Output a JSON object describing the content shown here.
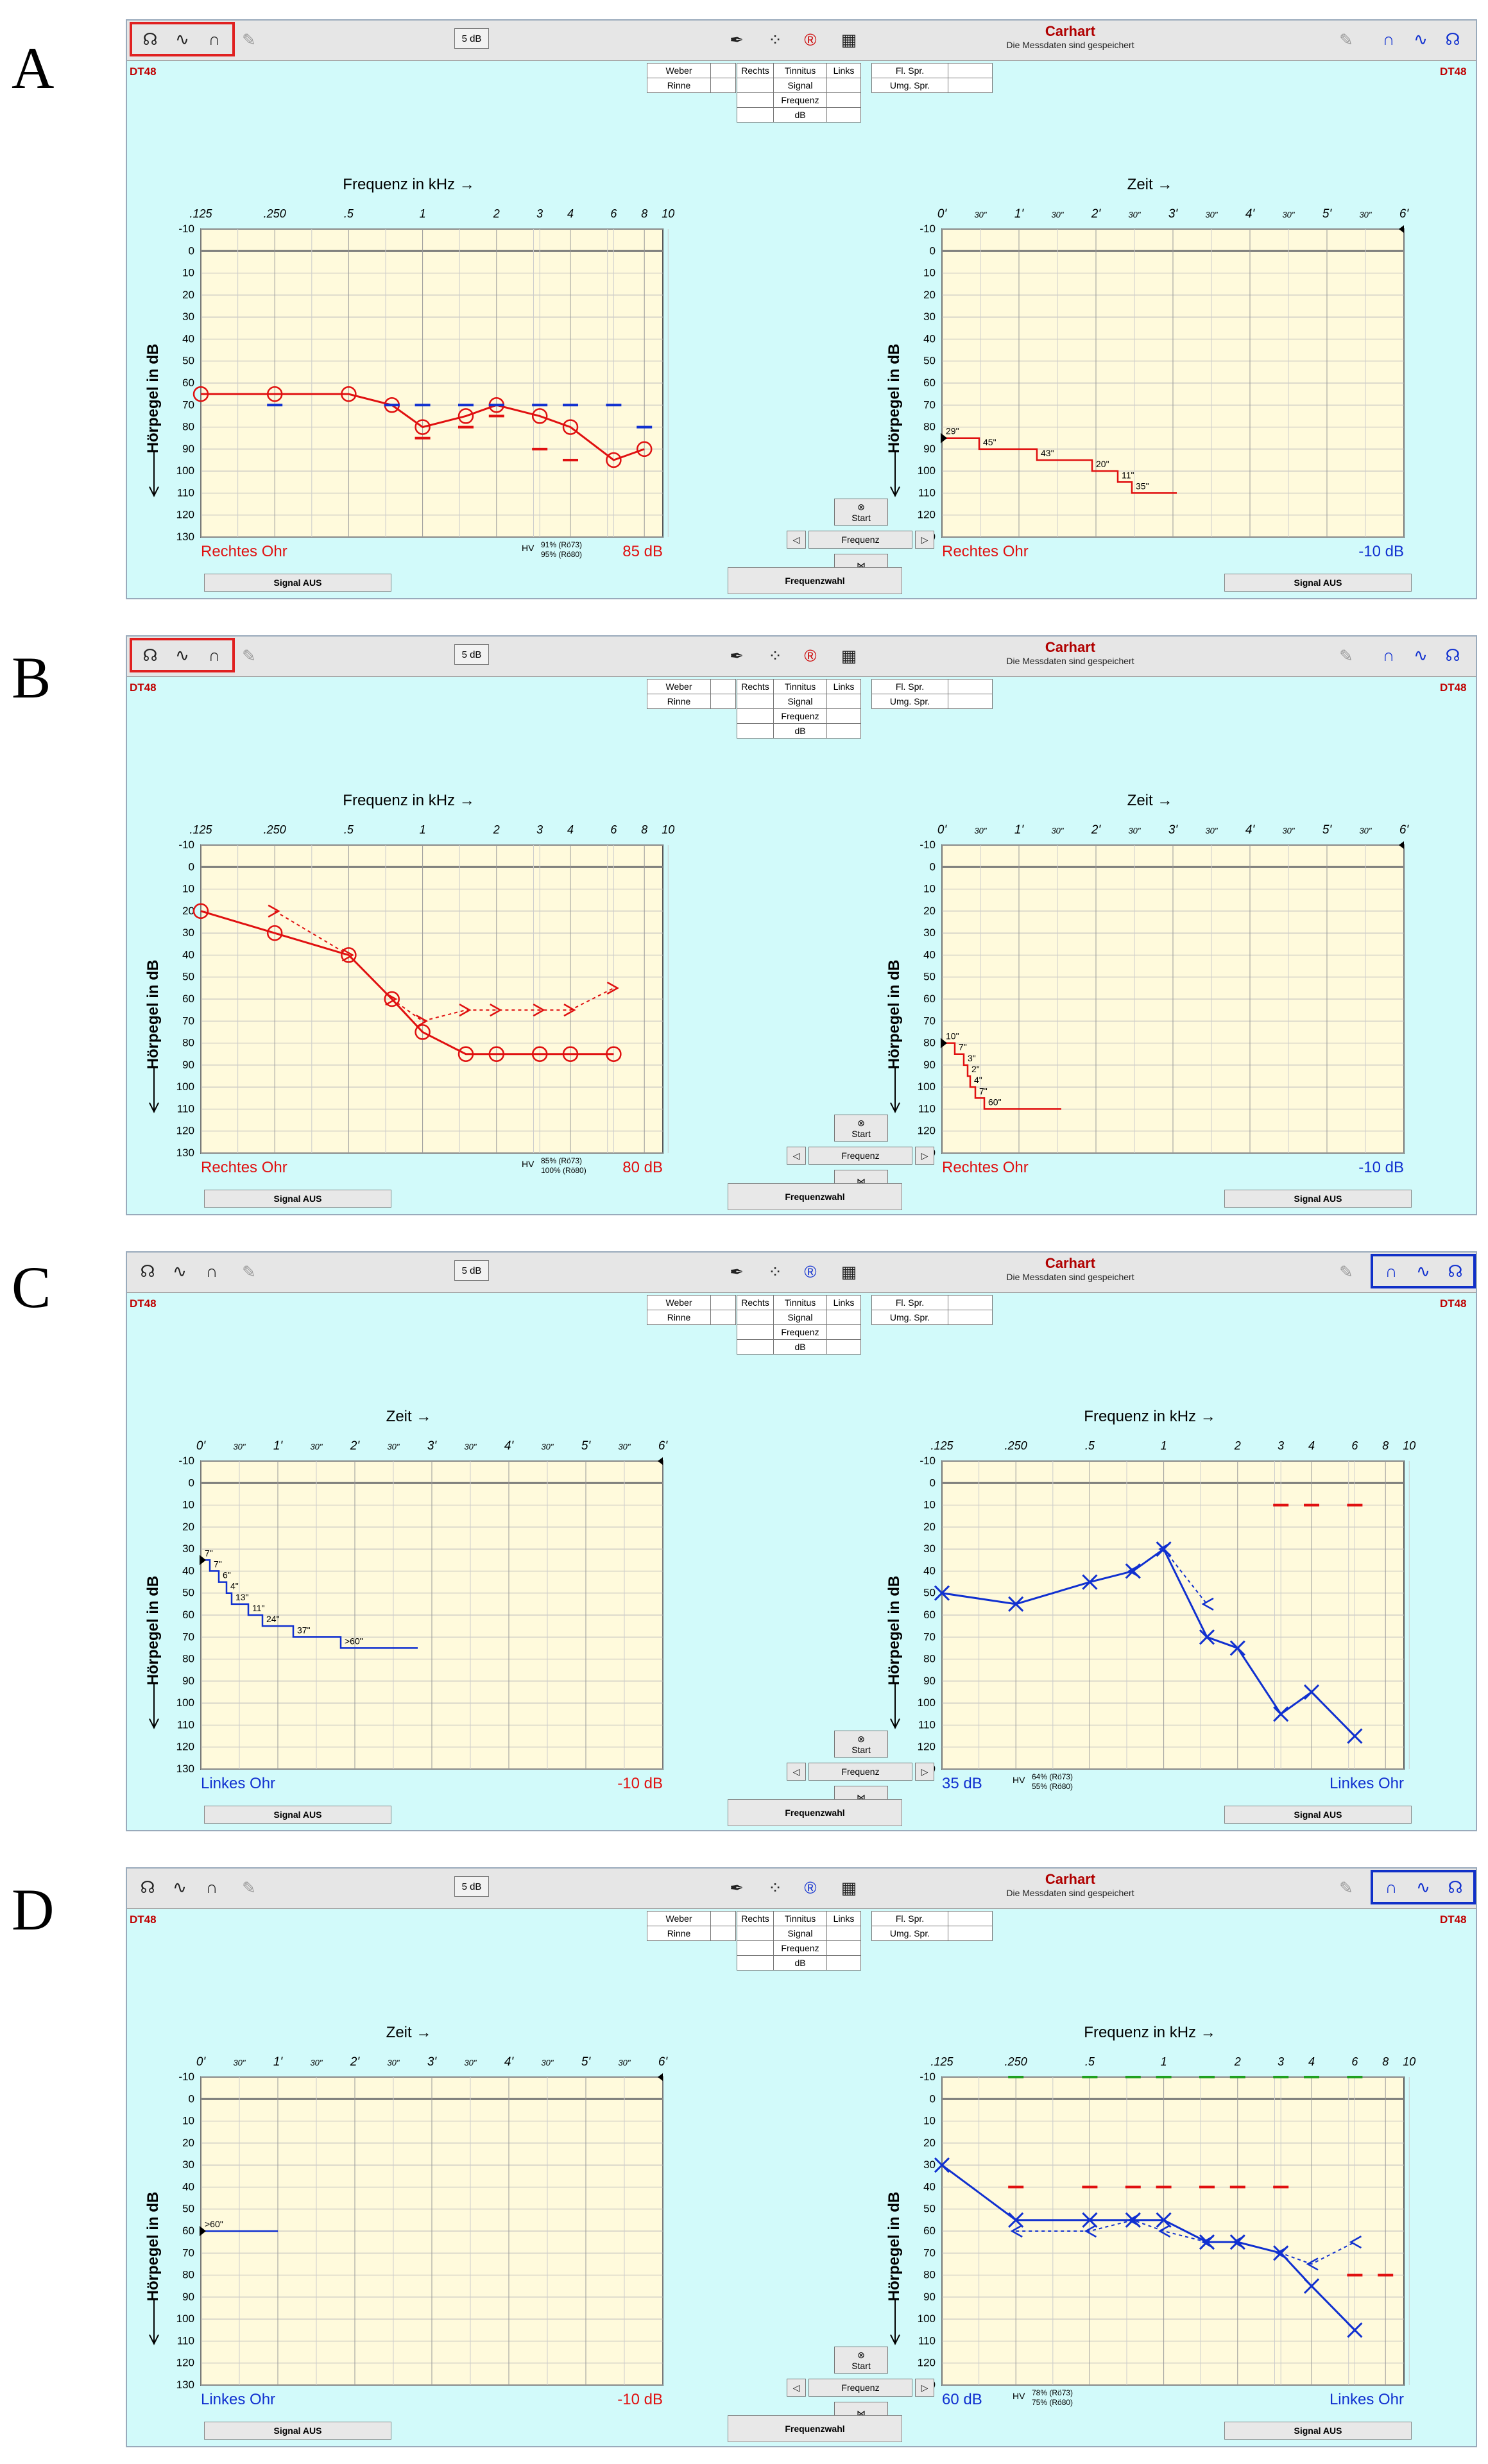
{
  "common": {
    "db_step": "5 dB",
    "carhart_title": "Carhart",
    "carhart_sub": "Die Messdaten sind gespeichert",
    "dt48": "DT48",
    "weber": "Weber",
    "rinne": "Rinne",
    "rechts": "Rechts",
    "tinnitus": "Tinnitus",
    "links": "Links",
    "signal": "Signal",
    "frequenz": "Frequenz",
    "db": "dB",
    "fl_spr": "Fl. Spr.",
    "umg_spr": "Umg. Spr.",
    "signal_aus": "Signal AUS",
    "frequenzwahl": "Frequenzwahl",
    "start": "Start",
    "frequenz_ctrl": "Frequenz",
    "freq_axis_title": "Frequenz in kHz  →",
    "time_axis_title": "Zeit  →",
    "y_axis_title": "Hörpegel in dB",
    "freq_ticks": [
      ".125",
      ".250",
      ".5",
      "1",
      "2",
      "3",
      "4",
      "6",
      "8",
      "10"
    ],
    "time_ticks": [
      "0'",
      "30\"",
      "1'",
      "30\"",
      "2'",
      "30\"",
      "3'",
      "30\"",
      "4'",
      "30\"",
      "5'",
      "30\"",
      "6'"
    ],
    "db_ticks": [
      "-10",
      "0",
      "10",
      "20",
      "30",
      "40",
      "50",
      "60",
      "70",
      "80",
      "90",
      "100",
      "110",
      "120",
      "130"
    ],
    "colors": {
      "right": "#e01010",
      "left": "#1030d0",
      "grid_bg": "#fffadc",
      "screen_bg": "#d2fafa"
    }
  },
  "panels": [
    {
      "label": "A",
      "ear": "right",
      "audiogram_left_side": true,
      "ear_label": "Rechtes Ohr",
      "level_db": "85 dB",
      "hv_line1": "91% (Rö73)",
      "hv_line2": "95% (Rö80)",
      "hv": "HV",
      "tone_decay_right": "-10 dB",
      "chart_data": [
        {
          "type": "line",
          "title": "Frequenz in kHz",
          "ylabel": "Hörpegel in dB",
          "x_scale": "log-frequency",
          "ylim": [
            -10,
            130
          ],
          "series": [
            {
              "name": "Luftleitung rechts",
              "x": [
                0.125,
                0.25,
                0.5,
                0.75,
                1,
                1.5,
                2,
                3,
                4,
                6,
                8
              ],
              "values": [
                65,
                65,
                65,
                70,
                80,
                75,
                70,
                75,
                80,
                95,
                90
              ]
            },
            {
              "name": "Unbehaglichkeit (blau)",
              "x": [
                0.25,
                0.75,
                1,
                1.5,
                2,
                3,
                4,
                6,
                8
              ],
              "values": [
                70,
                70,
                70,
                70,
                70,
                70,
                70,
                70,
                80
              ]
            },
            {
              "name": "Knochenleitung rechts",
              "x": [
                1,
                1.5,
                2,
                3,
                4
              ],
              "values": [
                85,
                80,
                75,
                90,
                95
              ]
            }
          ]
        },
        {
          "type": "line",
          "title": "Zeit",
          "ylabel": "Hörpegel in dB",
          "x_unit": "seconds",
          "ylim": [
            -10,
            130
          ],
          "xlim": [
            0,
            360
          ],
          "series": [
            {
              "name": "Tone decay",
              "x": [
                0,
                29,
                74,
                117,
                137,
                148,
                183
              ],
              "values": [
                85,
                90,
                95,
                100,
                105,
                110,
                110
              ]
            }
          ],
          "annotations": [
            "29\"",
            "45\"",
            "43\"",
            "20\"",
            "11\"",
            "35\""
          ]
        }
      ]
    },
    {
      "label": "B",
      "ear": "right",
      "audiogram_left_side": true,
      "ear_label": "Rechtes Ohr",
      "level_db": "80 dB",
      "hv_line1": "85% (Rö73)",
      "hv_line2": "100% (Rö80)",
      "hv": "HV",
      "tone_decay_right": "-10 dB",
      "chart_data": [
        {
          "type": "line",
          "title": "Frequenz in kHz",
          "ylabel": "Hörpegel in dB",
          "x_scale": "log-frequency",
          "ylim": [
            -10,
            130
          ],
          "series": [
            {
              "name": "Luftleitung rechts",
              "x": [
                0.125,
                0.25,
                0.5,
                0.75,
                1,
                1.5,
                2,
                3,
                4,
                6
              ],
              "values": [
                20,
                30,
                40,
                60,
                75,
                85,
                85,
                85,
                85,
                85
              ]
            },
            {
              "name": "Knochenleitung rechts",
              "x": [
                0.25,
                0.5,
                0.75,
                1,
                1.5,
                2,
                3,
                4,
                6
              ],
              "values": [
                20,
                40,
                60,
                70,
                65,
                65,
                65,
                65,
                55
              ]
            }
          ]
        },
        {
          "type": "line",
          "title": "Zeit",
          "ylim": [
            -10,
            130
          ],
          "xlim": [
            0,
            360
          ],
          "series": [
            {
              "name": "Tone decay",
              "x": [
                0,
                10,
                17,
                20,
                22,
                26,
                33,
                93
              ],
              "values": [
                80,
                85,
                90,
                95,
                100,
                105,
                110,
                110
              ]
            }
          ],
          "annotations": [
            "10\"",
            "7\"",
            "3\"",
            "2\"",
            "4\"",
            "7\"",
            "60\""
          ]
        }
      ]
    },
    {
      "label": "C",
      "ear": "left",
      "audiogram_left_side": false,
      "ear_label": "Linkes Ohr",
      "level_db": "35 dB",
      "hv_line1": "64% (Rö73)",
      "hv_line2": "55% (Rö80)",
      "hv": "HV",
      "tone_decay_right": "-10 dB",
      "chart_data": [
        {
          "type": "line",
          "title": "Zeit",
          "ylim": [
            -10,
            130
          ],
          "xlim": [
            0,
            360
          ],
          "series": [
            {
              "name": "Tone decay",
              "x": [
                0,
                7,
                14,
                20,
                24,
                37,
                48,
                72,
                109,
                169
              ],
              "values": [
                35,
                40,
                45,
                50,
                55,
                60,
                65,
                70,
                75,
                75
              ]
            }
          ],
          "annotations": [
            "7\"",
            "7\"",
            "6\"",
            "4\"",
            "13\"",
            "11\"",
            "24\"",
            "37\"",
            ">60\""
          ]
        },
        {
          "type": "line",
          "title": "Frequenz in kHz",
          "ylabel": "Hörpegel in dB",
          "x_scale": "log-frequency",
          "ylim": [
            -10,
            130
          ],
          "series": [
            {
              "name": "Luftleitung links",
              "x": [
                0.125,
                0.25,
                0.5,
                0.75,
                1,
                1.5,
                2,
                3,
                4,
                6
              ],
              "values": [
                50,
                55,
                45,
                40,
                30,
                70,
                75,
                105,
                95,
                115
              ]
            },
            {
              "name": "Knochenleitung links",
              "x": [
                0.75,
                1,
                1.5
              ],
              "values": [
                40,
                30,
                55
              ]
            },
            {
              "name": "Vertäubung (rot)",
              "x": [
                3,
                4,
                6
              ],
              "values": [
                10,
                10,
                10
              ]
            }
          ]
        }
      ]
    },
    {
      "label": "D",
      "ear": "left",
      "audiogram_left_side": false,
      "ear_label": "Linkes Ohr",
      "level_db": "60 dB",
      "hv_line1": "78% (Rö73)",
      "hv_line2": "75% (Rö80)",
      "hv": "HV",
      "tone_decay_right": "-10 dB",
      "chart_data": [
        {
          "type": "line",
          "title": "Zeit",
          "ylim": [
            -10,
            130
          ],
          "xlim": [
            0,
            360
          ],
          "series": [
            {
              "name": "Tone decay",
              "x": [
                0,
                60
              ],
              "values": [
                60,
                60
              ]
            }
          ],
          "annotations": [
            ">60\""
          ]
        },
        {
          "type": "line",
          "title": "Frequenz in kHz",
          "ylabel": "Hörpegel in dB",
          "x_scale": "log-frequency",
          "ylim": [
            -10,
            130
          ],
          "series": [
            {
              "name": "Luftleitung links",
              "x": [
                0.125,
                0.25,
                0.5,
                0.75,
                1,
                1.5,
                2,
                3,
                4,
                6
              ],
              "values": [
                30,
                55,
                55,
                55,
                55,
                65,
                65,
                70,
                85,
                105
              ]
            },
            {
              "name": "Knochenleitung links",
              "x": [
                0.25,
                0.5,
                0.75,
                1,
                1.5,
                2,
                3,
                4,
                6
              ],
              "values": [
                60,
                60,
                55,
                60,
                65,
                65,
                70,
                75,
                65
              ]
            },
            {
              "name": "Vertäubung (rot)",
              "x": [
                0.25,
                0.5,
                0.75,
                1,
                1.5,
                2,
                3,
                6,
                8
              ],
              "values": [
                40,
                40,
                40,
                40,
                40,
                40,
                40,
                80,
                80
              ]
            },
            {
              "name": "Unbehaglichkeit (grün)",
              "x": [
                0.25,
                0.5,
                0.75,
                1,
                1.5,
                2,
                3,
                4,
                6
              ],
              "values": [
                -10,
                -10,
                -10,
                -10,
                -10,
                -10,
                -10,
                -10,
                -10
              ]
            }
          ]
        }
      ]
    }
  ]
}
